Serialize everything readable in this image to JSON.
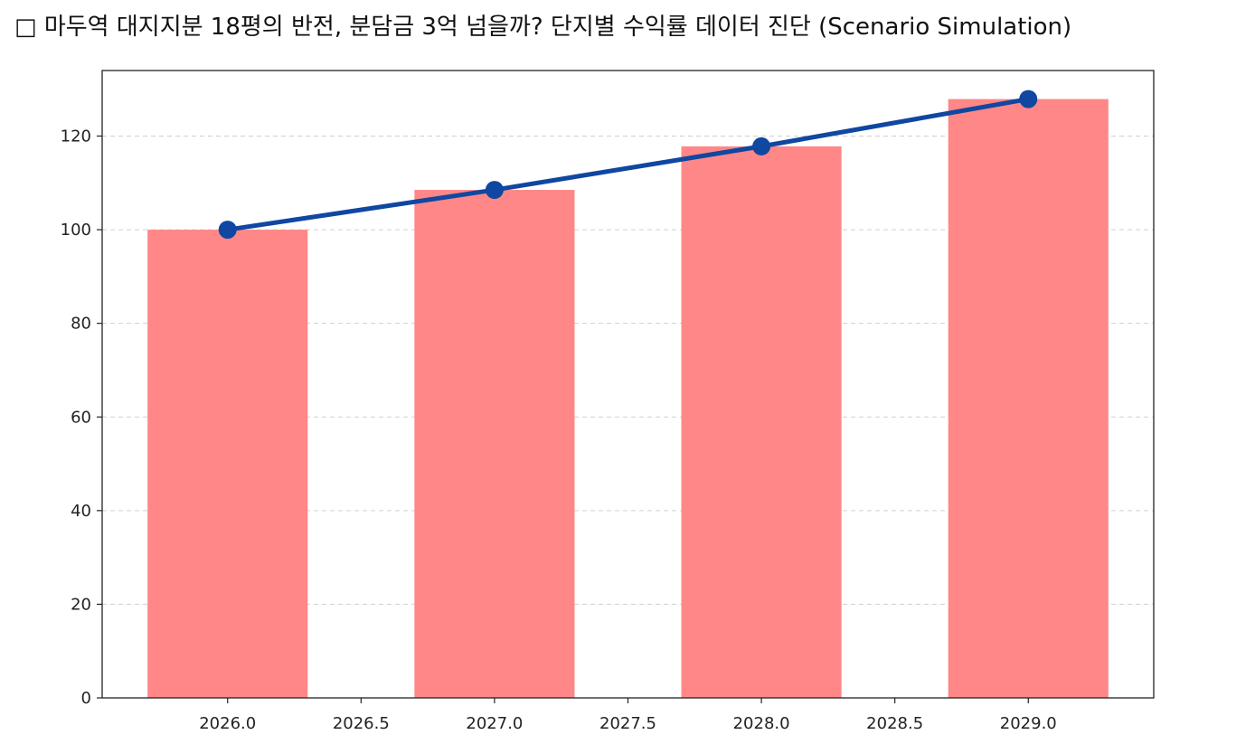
{
  "chart_data": {
    "type": "bar",
    "title": "□ 마두역 대지지분 18평의 반전, 분담금 3억 넘을까? 단지별 수익률 데이터 진단 (Scenario Simulation)",
    "xlabel": "",
    "ylabel": "",
    "x": [
      2026.0,
      2027.0,
      2028.0,
      2029.0
    ],
    "bar_values": [
      100,
      108.5,
      117.8,
      127.9
    ],
    "line_values": [
      100,
      108.5,
      117.8,
      127.9
    ],
    "xlim": [
      2025.53,
      2029.47
    ],
    "ylim": [
      0,
      134
    ],
    "x_ticks": [
      2026.0,
      2026.5,
      2027.0,
      2027.5,
      2028.0,
      2028.5,
      2029.0
    ],
    "x_tick_labels": [
      "2026.0",
      "2026.5",
      "2027.0",
      "2027.5",
      "2028.0",
      "2028.5",
      "2029.0"
    ],
    "y_ticks": [
      0,
      20,
      40,
      60,
      80,
      100,
      120
    ],
    "y_tick_labels": [
      "0",
      "20",
      "40",
      "60",
      "80",
      "100",
      "120"
    ],
    "bar_width": 0.6,
    "grid": "y dashed",
    "legend": "none",
    "colors": {
      "bar": "#ff8787",
      "line": "#0f47a1",
      "grid": "#d0d0d0",
      "axis": "#222222"
    }
  }
}
